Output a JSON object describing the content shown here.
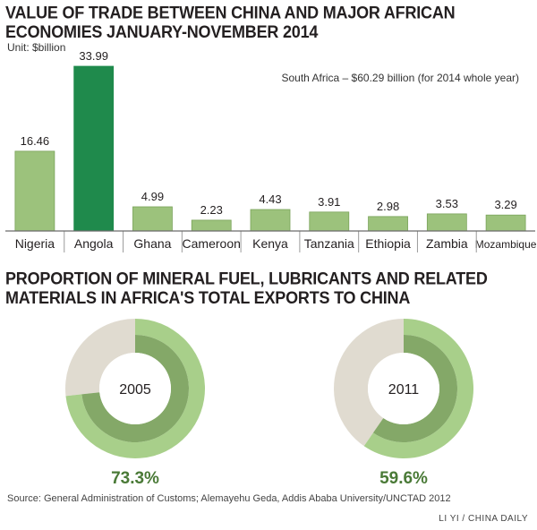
{
  "chart_data": [
    {
      "type": "bar",
      "title": "VALUE OF TRADE BETWEEN CHINA AND MAJOR AFRICAN ECONOMIES JANUARY-NOVEMBER 2014",
      "unit": "Unit: $billion",
      "annotation": "South Africa – $60.29 billion (for 2014 whole year)",
      "categories": [
        "Nigeria",
        "Angola",
        "Ghana",
        "Cameroon",
        "Kenya",
        "Tanzania",
        "Ethiopia",
        "Zambia",
        "Mozambique"
      ],
      "values": [
        16.46,
        33.99,
        4.99,
        2.23,
        4.43,
        3.91,
        2.98,
        3.53,
        3.29
      ],
      "value_labels": [
        "16.46",
        "33.99",
        "4.99",
        "2.23",
        "4.43",
        "3.91",
        "2.98",
        "3.53",
        "3.29"
      ],
      "highlight": "Angola",
      "ylim": [
        0,
        33.99
      ],
      "colors": {
        "bar": "#9cc27c",
        "bar_edge": "#7aa35a",
        "highlight": "#1f8a4c",
        "baseline": "#6b6b6b"
      }
    },
    {
      "type": "pie",
      "title": "PROPORTION OF MINERAL FUEL, LUBRICANTS AND RELATED MATERIALS IN AFRICA'S TOTAL EXPORTS TO CHINA",
      "charts": [
        {
          "year": "2005",
          "percent": 73.3,
          "label": "73.3%"
        },
        {
          "year": "2011",
          "percent": 59.6,
          "label": "59.6%"
        }
      ],
      "colors": {
        "share": "#a8cf8a",
        "inner_share": "#84a868",
        "rest": "#e0dbd0",
        "hole": "#ffffff",
        "label": "#4a7a37"
      }
    }
  ],
  "footer": {
    "source": "Source: General Administration of Customs; Alemayehu Geda, Addis Ababa University/UNCTAD 2012",
    "credit": "LI YI / CHINA DAILY"
  }
}
